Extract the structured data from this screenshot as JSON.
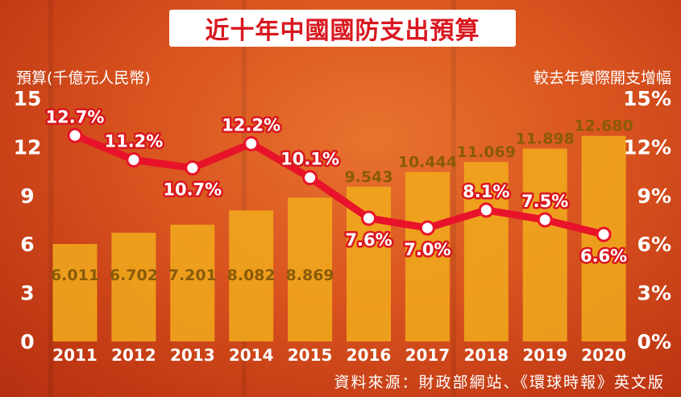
{
  "chart_data": {
    "type": "bar",
    "title": "近十年中國國防支出預算",
    "ylabel": "預算(千億元人民幣)",
    "y2label": "較去年實際開支增幅",
    "categories": [
      "2011",
      "2012",
      "2013",
      "2014",
      "2015",
      "2016",
      "2017",
      "2018",
      "2019",
      "2020"
    ],
    "ylim": [
      0,
      15
    ],
    "yticks": [
      "0",
      "3",
      "6",
      "9",
      "12",
      "15"
    ],
    "y2lim": [
      0,
      15
    ],
    "y2ticks": [
      "0%",
      "3%",
      "6%",
      "9%",
      "12%",
      "15%"
    ],
    "series": [
      {
        "type": "bar",
        "values": [
          6.011,
          6.702,
          7.201,
          8.082,
          8.869,
          9.543,
          10.444,
          11.069,
          11.898,
          12.68
        ],
        "labels": [
          "6.011",
          "6.702",
          "7.201",
          "8.082",
          "8.869",
          "9.543",
          "10.444",
          "11.069",
          "11.898",
          "12.680"
        ],
        "color": "#f0a81c"
      },
      {
        "type": "line",
        "axis": "right",
        "values": [
          12.7,
          11.2,
          10.7,
          12.2,
          10.1,
          7.6,
          7.0,
          8.1,
          7.5,
          6.6
        ],
        "labels": [
          "12.7%",
          "11.2%",
          "10.7%",
          "12.2%",
          "10.1%",
          "7.6%",
          "7.0%",
          "8.1%",
          "7.5%",
          "6.6%"
        ],
        "color": "#e8132a"
      }
    ],
    "grid": false,
    "source": "資料來源：財政部網站、《環球時報》英文版"
  }
}
